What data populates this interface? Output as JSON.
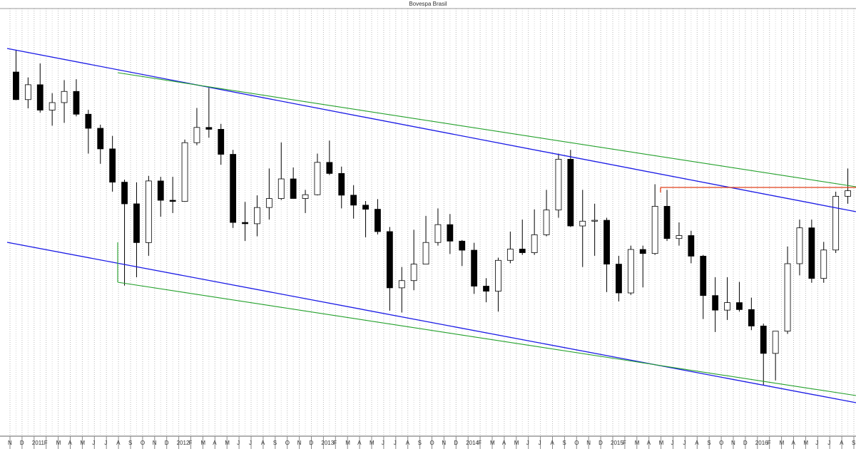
{
  "chart_data": {
    "type": "candlestick",
    "title": "Bovespa Brasil",
    "categories": [
      "N",
      "D",
      "2011",
      "F",
      "M",
      "A",
      "M",
      "J",
      "J",
      "A",
      "S",
      "O",
      "N",
      "D",
      "2012",
      "F",
      "M",
      "A",
      "M",
      "J",
      "J",
      "A",
      "S",
      "O",
      "N",
      "D",
      "2013",
      "F",
      "M",
      "A",
      "M",
      "J",
      "J",
      "A",
      "S",
      "O",
      "N",
      "D",
      "2014",
      "F",
      "M",
      "A",
      "M",
      "J",
      "J",
      "A",
      "S",
      "O",
      "N",
      "D",
      "2015",
      "F",
      "M",
      "A",
      "M",
      "J",
      "J",
      "A",
      "S",
      "O",
      "N",
      "D",
      "2016",
      "F",
      "M",
      "A",
      "M",
      "J",
      "J",
      "A",
      "S"
    ],
    "open": [
      70673,
      67705,
      69305,
      66575,
      67383,
      68587,
      66133,
      64620,
      62404,
      58823,
      56495,
      52324,
      58955,
      56875,
      56754,
      63072,
      64711,
      64511,
      61820,
      54490,
      54355,
      56097,
      57061,
      59176,
      57068,
      57475,
      60952,
      59761,
      57424,
      56352,
      55910,
      53506,
      47457,
      48234,
      50008,
      52338,
      54256,
      52482,
      51507,
      47638,
      47094,
      50414,
      51626,
      51239,
      53168,
      55829,
      61288,
      54115,
      54629,
      54724,
      50007,
      46908,
      51583,
      51150,
      56229,
      52760,
      53081,
      50865,
      46626,
      45059,
      45868,
      45120,
      43350,
      40405,
      42793,
      50055,
      53910,
      48471,
      51526,
      57308,
      null
    ],
    "high": [
      72996,
      70089,
      71600,
      68400,
      69800,
      69900,
      66600,
      65000,
      63800,
      59100,
      58800,
      59500,
      59400,
      59400,
      63400,
      66800,
      68970,
      65100,
      62300,
      56700,
      57400,
      60300,
      63100,
      60400,
      58000,
      61900,
      63300,
      60500,
      58500,
      56800,
      57000,
      54000,
      49700,
      53700,
      55200,
      56000,
      55400,
      52600,
      52300,
      48500,
      50700,
      53500,
      54800,
      55900,
      58000,
      61900,
      62300,
      58000,
      56500,
      55000,
      50900,
      52000,
      52000,
      58600,
      58000,
      54500,
      53600,
      51000,
      48600,
      48600,
      48100,
      46400,
      43600,
      42800,
      51900,
      54800,
      54800,
      52400,
      57800,
      60300,
      null
    ],
    "low": [
      67648,
      66766,
      66300,
      64900,
      65200,
      65900,
      61900,
      60800,
      57800,
      47700,
      48600,
      50900,
      55100,
      55500,
      56700,
      62800,
      63600,
      60700,
      53900,
      52500,
      53000,
      54800,
      56900,
      57100,
      55500,
      57400,
      59600,
      56000,
      54900,
      52900,
      53200,
      45000,
      44800,
      47200,
      50000,
      52000,
      51100,
      49800,
      46800,
      45900,
      44900,
      50100,
      51000,
      51000,
      53000,
      55000,
      54000,
      49700,
      50900,
      47000,
      46000,
      46700,
      47500,
      51000,
      52500,
      52000,
      50100,
      44100,
      42700,
      44000,
      44900,
      42900,
      37000,
      37500,
      42500,
      48800,
      48000,
      48000,
      51200,
      56500,
      null
    ],
    "close": [
      67705,
      69305,
      66575,
      67383,
      68587,
      66133,
      64620,
      62404,
      58823,
      56495,
      52324,
      58955,
      56875,
      56754,
      63072,
      64711,
      64511,
      61820,
      54490,
      54355,
      56097,
      57061,
      59176,
      57068,
      57475,
      60952,
      59761,
      57424,
      56352,
      55910,
      53506,
      47457,
      48234,
      50008,
      52338,
      54256,
      52482,
      51507,
      47638,
      47094,
      50414,
      51626,
      51239,
      53168,
      55829,
      61288,
      54115,
      54629,
      54724,
      50007,
      46908,
      51583,
      51150,
      56229,
      52760,
      53081,
      50865,
      46626,
      45059,
      45868,
      45120,
      43350,
      40405,
      42793,
      50055,
      53910,
      48471,
      51526,
      57308,
      57901,
      null
    ],
    "ylim": [
      31500,
      77500
    ],
    "grid": true,
    "up_color": "#ffffff",
    "down_color": "#000000"
  }
}
